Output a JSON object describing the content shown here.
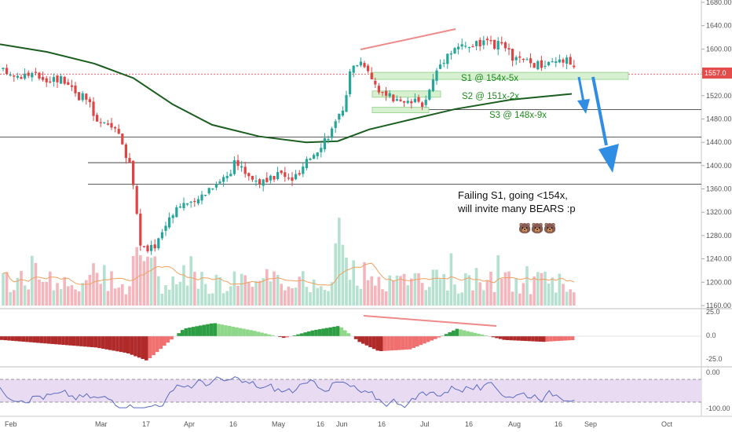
{
  "chart_data": {
    "type": "candlestick",
    "instrument_last_price": "1557.0",
    "price_axis": {
      "ticks": [
        "1680.00",
        "1640.00",
        "1600.00",
        "1560.00",
        "1520.00",
        "1480.00",
        "1440.00",
        "1400.00",
        "1360.00",
        "1320.00",
        "1280.00",
        "1240.00",
        "1200.00",
        "1160.00"
      ],
      "range": [
        1148,
        1692
      ]
    },
    "macd_axis": {
      "ticks": [
        "25.0",
        "0.0",
        "-25.0"
      ]
    },
    "rsi_axis": {
      "ticks": [
        "0.00",
        "-100.00"
      ]
    },
    "time_axis": {
      "ticks": [
        "Feb",
        "Mar",
        "17",
        "Apr",
        "16",
        "May",
        "16",
        "Jun",
        "16",
        "Jul",
        "16",
        "Aug",
        "16",
        "Sep",
        "Oct"
      ]
    },
    "support_levels": [
      {
        "label": "S1 @ 154x-5x",
        "price": 1549
      },
      {
        "label": "S2 @ 151x-2x",
        "price": 1518
      },
      {
        "label": "S3 @ 148x-9x",
        "price": 1487
      }
    ],
    "horizontal_levels": [
      1557,
      1496,
      1449,
      1405,
      1368
    ],
    "annotation": {
      "line1": "Failing S1, going <154x,",
      "line2": "will invite many BEARS :p",
      "emoji": "🐻🐻🐻"
    },
    "legend": "none",
    "grid": false,
    "colors": {
      "up": "#26a69a",
      "down": "#e04343",
      "moving_average": "#1b5e20",
      "volume_ma": "#f0a060",
      "rsi_line": "#5b6bc0",
      "rsi_band": "#e9dcf2",
      "forecast_arrow": "#2f8de4",
      "trendline": "#ef8a8a",
      "support_zone": "#d6f0d0",
      "last_price_label": "#e44c4c"
    }
  }
}
